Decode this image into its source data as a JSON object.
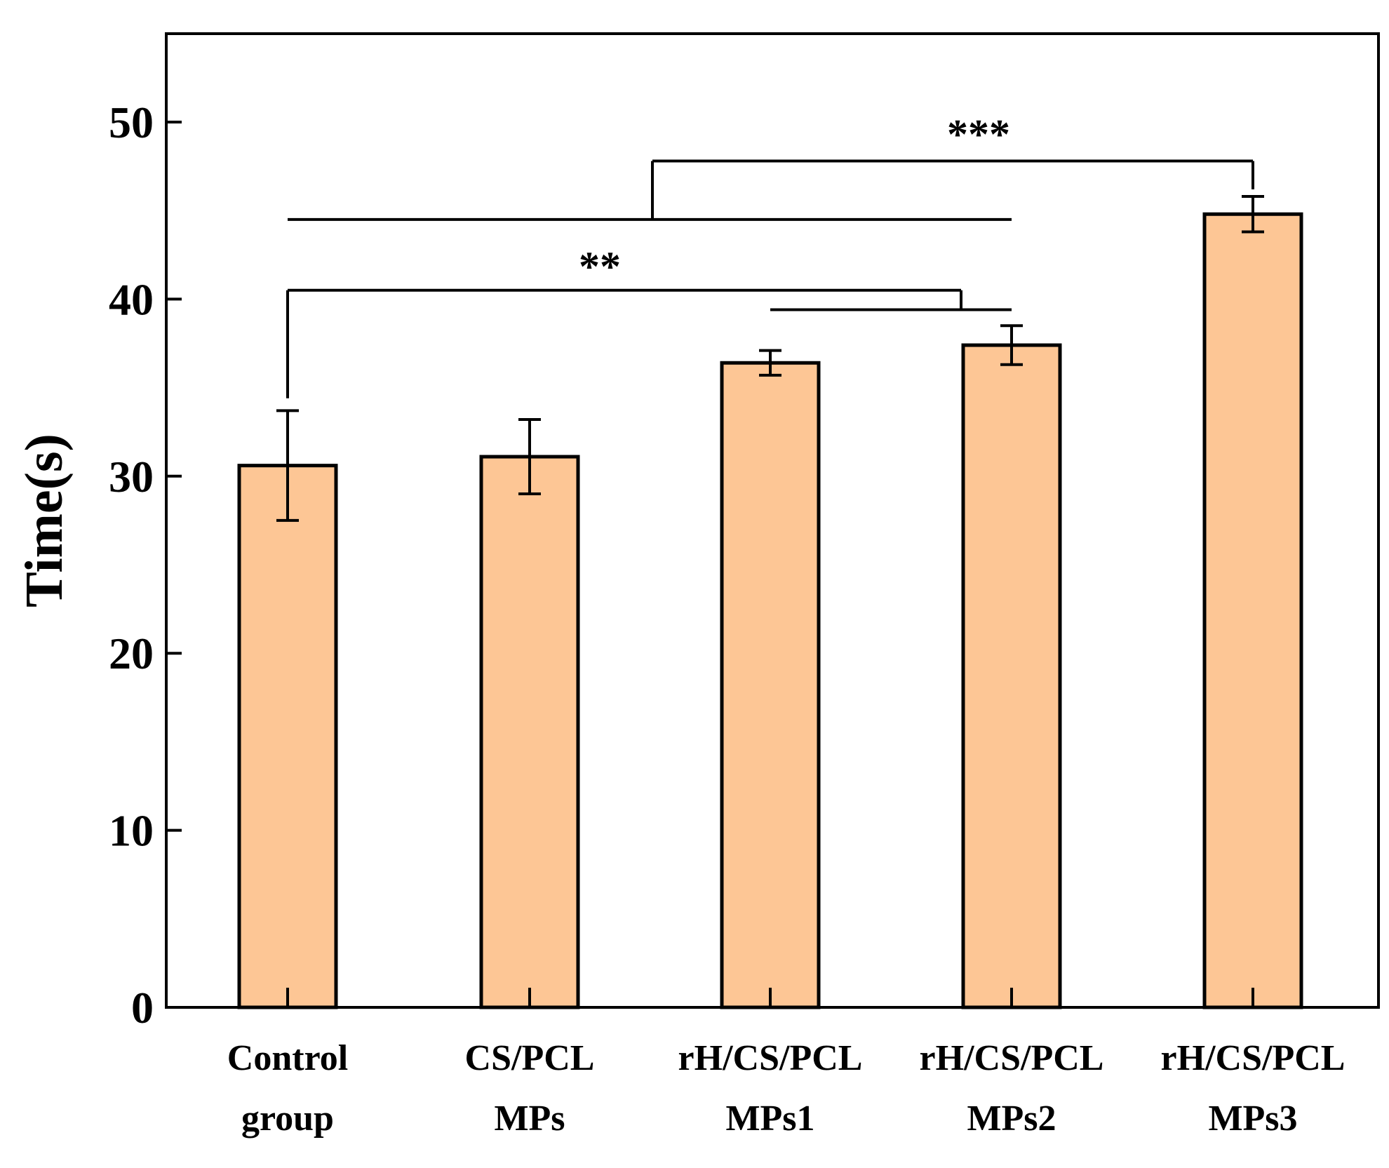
{
  "chart_data": {
    "type": "bar",
    "title": "",
    "xlabel": "",
    "ylabel": "Time(s)",
    "ylim": [
      0,
      55
    ],
    "yticks": [
      0,
      10,
      20,
      30,
      40,
      50
    ],
    "grid": false,
    "bar_color": "#FDC695",
    "categories": [
      [
        "Control",
        "group"
      ],
      [
        "CS/PCL",
        "MPs"
      ],
      [
        "rH/CS/PCL",
        "MPs1"
      ],
      [
        "rH/CS/PCL",
        "MPs2"
      ],
      [
        "rH/CS/PCL",
        "MPs3"
      ]
    ],
    "values": [
      30.6,
      31.1,
      36.4,
      37.4,
      44.8
    ],
    "errors": [
      3.1,
      2.1,
      0.7,
      1.1,
      1.0
    ],
    "significance": [
      {
        "label": "**",
        "from": 0,
        "to_span": [
          2,
          3
        ],
        "left_y": 40.5,
        "right_y": 39.4
      },
      {
        "label": "***",
        "from_span": [
          0,
          3
        ],
        "to": 4,
        "left_y": 44.5,
        "top_y": 47.8
      }
    ]
  }
}
